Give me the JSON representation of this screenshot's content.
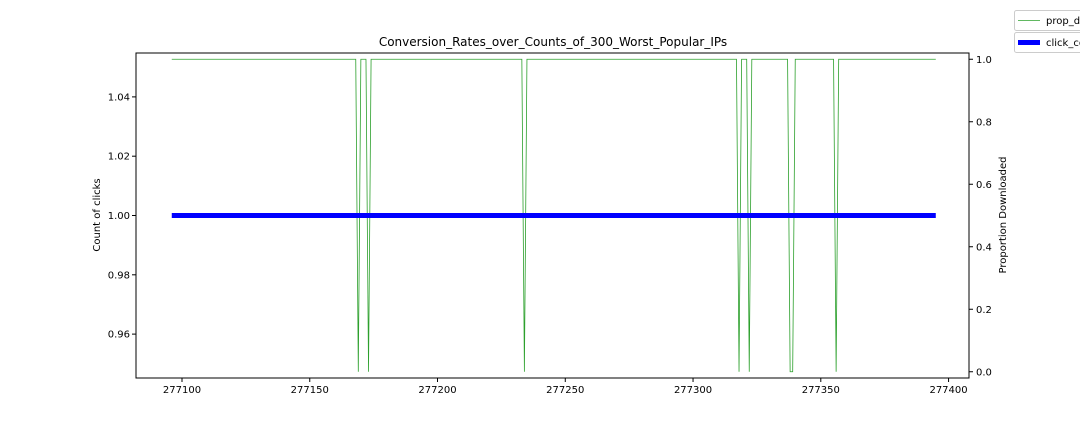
{
  "chart_data": {
    "type": "line",
    "title": "Conversion_Rates_over_Counts_of_300_Worst_Popular_IPs",
    "ylabel": "Count of clicks",
    "ylabel_right": "Proportion Downloaded",
    "xlim": [
      277082,
      277408
    ],
    "ylim": [
      0.9452,
      1.0548
    ],
    "ylim_right": [
      -0.02,
      1.02
    ],
    "x_ticks": [
      277100,
      277150,
      277200,
      277250,
      277300,
      277350,
      277400
    ],
    "y_ticks": [
      0.96,
      0.98,
      1.0,
      1.02,
      1.04
    ],
    "y_ticks_right": [
      0.0,
      0.2,
      0.4,
      0.6,
      0.8,
      1.0
    ],
    "grid": false,
    "legend_position": "upper-right-outside",
    "series": [
      {
        "name": "prop_d",
        "axis": "right",
        "color": "#2ca02c",
        "x_start": 277096,
        "x_end": 277395,
        "base_value": 1.0,
        "dips_to_zero_at": [
          277169,
          277173,
          277234,
          277318,
          277322,
          277338,
          277339,
          277356
        ]
      },
      {
        "name": "click_co",
        "axis": "left",
        "color": "#0000ff",
        "x_start": 277096,
        "x_end": 277395,
        "value": 1.0
      }
    ]
  }
}
